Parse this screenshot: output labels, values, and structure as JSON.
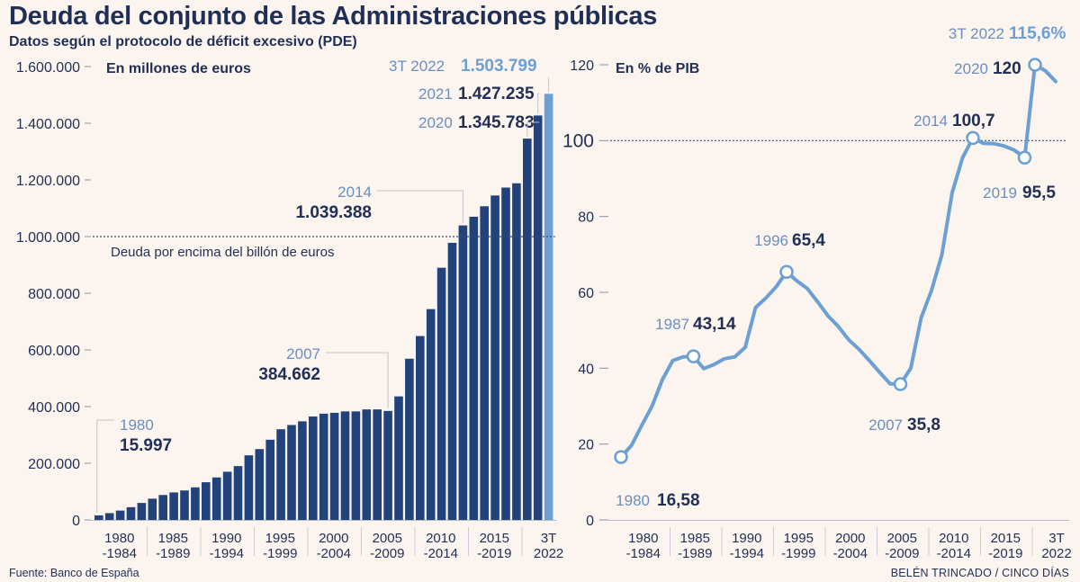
{
  "header": {
    "title": "Deuda del conjunto de las Administraciones públicas",
    "subtitle": "Datos según el protocolo de déficit excesivo (PDE)"
  },
  "footer": {
    "source": "Fuente: Banco de España",
    "credit": "BELÉN TRINCADO / CINCO DÍAS"
  },
  "colors": {
    "bar": "#21427a",
    "bar_highlight": "#6c9fd4",
    "line": "#6c9fd4",
    "text_dark": "#1f2f56",
    "text_light": "#6a8fbf",
    "background": "#fcf4ee"
  },
  "chart_data": [
    {
      "type": "bar",
      "ylabel": "En millones de euros",
      "ylim": [
        0,
        1600000
      ],
      "y_ticks": [
        "0",
        "200.000",
        "400.000",
        "600.000",
        "800.000",
        "1.000.000",
        "1.200.000",
        "1.400.000",
        "1.600.000"
      ],
      "x_tick_labels": [
        [
          "1980",
          "-1984"
        ],
        [
          "1985",
          "-1989"
        ],
        [
          "1990",
          "-1994"
        ],
        [
          "1995",
          "-1999"
        ],
        [
          "2000",
          "-2004"
        ],
        [
          "2005",
          "-2009"
        ],
        [
          "2010",
          "-2014"
        ],
        [
          "2015",
          "-2019"
        ],
        [
          "3T",
          "2022"
        ]
      ],
      "categories": [
        "1980",
        "1981",
        "1982",
        "1983",
        "1984",
        "1985",
        "1986",
        "1987",
        "1988",
        "1989",
        "1990",
        "1991",
        "1992",
        "1993",
        "1994",
        "1995",
        "1996",
        "1997",
        "1998",
        "1999",
        "2000",
        "2001",
        "2002",
        "2003",
        "2004",
        "2005",
        "2006",
        "2007",
        "2008",
        "2009",
        "2010",
        "2011",
        "2012",
        "2013",
        "2014",
        "2015",
        "2016",
        "2017",
        "2018",
        "2019",
        "2020",
        "2021",
        "3T 2022"
      ],
      "values": [
        15997,
        24000,
        33000,
        45000,
        60000,
        75000,
        88000,
        97000,
        104000,
        115000,
        133000,
        150000,
        170000,
        190000,
        228000,
        250000,
        283000,
        320000,
        335000,
        348000,
        365000,
        375000,
        378000,
        383000,
        383000,
        390000,
        390000,
        384662,
        436000,
        569000,
        649000,
        744000,
        890000,
        978000,
        1039388,
        1070000,
        1107000,
        1145000,
        1173000,
        1188000,
        1345783,
        1427235,
        1503799
      ],
      "highlight_last": true,
      "reference_line": {
        "value": 1000000,
        "label": "Deuda por encima del billón de euros"
      },
      "annotations": [
        {
          "category": "1980",
          "label": "1980",
          "value_text": "15.997"
        },
        {
          "category": "2007",
          "label": "2007",
          "value_text": "384.662"
        },
        {
          "category": "2014",
          "label": "2014",
          "value_text": "1.039.388"
        },
        {
          "category": "2020",
          "label": "2020",
          "value_text": "1.345.783"
        },
        {
          "category": "2021",
          "label": "2021",
          "value_text": "1.427.235"
        },
        {
          "category": "3T 2022",
          "label": "3T 2022",
          "value_text": "1.503.799"
        }
      ]
    },
    {
      "type": "line",
      "ylabel": "En % de PIB",
      "ylim": [
        0,
        120
      ],
      "y_ticks": [
        "0",
        "20",
        "40",
        "60",
        "80",
        "100",
        "120"
      ],
      "x_tick_labels": [
        [
          "1980",
          "-1984"
        ],
        [
          "1985",
          "-1989"
        ],
        [
          "1990",
          "-1994"
        ],
        [
          "1995",
          "-1999"
        ],
        [
          "2000",
          "-2004"
        ],
        [
          "2005",
          "-2009"
        ],
        [
          "2010",
          "-2014"
        ],
        [
          "2015",
          "-2019"
        ],
        [
          "3T",
          "2022"
        ]
      ],
      "x": [
        "1980",
        "1981",
        "1982",
        "1983",
        "1984",
        "1985",
        "1986",
        "1987",
        "1988",
        "1989",
        "1990",
        "1991",
        "1992",
        "1993",
        "1994",
        "1995",
        "1996",
        "1997",
        "1998",
        "1999",
        "2000",
        "2001",
        "2002",
        "2003",
        "2004",
        "2005",
        "2006",
        "2007",
        "2008",
        "2009",
        "2010",
        "2011",
        "2012",
        "2013",
        "2014",
        "2015",
        "2016",
        "2017",
        "2018",
        "2019",
        "2020",
        "2021",
        "3T 2022"
      ],
      "values": [
        16.58,
        19.6,
        24.9,
        30.0,
        37.0,
        42.0,
        43.0,
        43.14,
        39.9,
        41.0,
        42.5,
        43.0,
        45.5,
        56.0,
        58.5,
        61.5,
        65.4,
        63.0,
        61.0,
        57.5,
        53.8,
        51.0,
        47.5,
        45.0,
        42.0,
        38.9,
        35.9,
        35.8,
        40.0,
        53.3,
        60.5,
        69.9,
        86.3,
        95.5,
        100.7,
        99.3,
        99.2,
        98.6,
        97.5,
        95.5,
        120.0,
        118.4,
        115.6
      ],
      "reference_line": {
        "value": 100
      },
      "markers": [
        {
          "x": "1980",
          "label": "1980",
          "value_text": "16,58"
        },
        {
          "x": "1987",
          "label": "1987",
          "value_text": "43,14"
        },
        {
          "x": "1996",
          "label": "1996",
          "value_text": "65,4"
        },
        {
          "x": "2007",
          "label": "2007",
          "value_text": "35,8"
        },
        {
          "x": "2014",
          "label": "2014",
          "value_text": "100,7"
        },
        {
          "x": "2019",
          "label": "2019",
          "value_text": "95,5"
        },
        {
          "x": "2020",
          "label": "2020",
          "value_text": "120"
        },
        {
          "x": "3T 2022",
          "label": "3T 2022",
          "value_text": "115,6%"
        }
      ]
    }
  ]
}
